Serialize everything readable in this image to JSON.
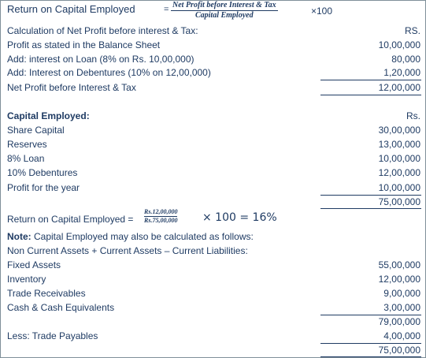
{
  "roce_label": "Return on Capital Employed",
  "roce_equals": "=",
  "roce_numerator": "Net Profit before Interest & Tax",
  "roce_denominator": "Capital Employed",
  "roce_times": "×100",
  "calc": {
    "heading": "Calculation of Net Profit before interest & Tax:",
    "currency": "RS.",
    "rows": [
      {
        "label": "Profit as stated in the Balance Sheet",
        "amount": "10,00,000"
      },
      {
        "label": "Add: interest on Loan (8% on Rs. 10,00,000)",
        "amount": "80,000"
      },
      {
        "label": "Add: Interest on Debentures (10% on 12,00,000)",
        "amount": "1,20,000"
      },
      {
        "label": "Net Profit before Interest & Tax",
        "amount": "12,00,000"
      }
    ]
  },
  "ce": {
    "heading": "Capital Employed:",
    "currency": "Rs.",
    "rows": [
      {
        "label": "Share Capital",
        "amount": "30,00,000"
      },
      {
        "label": "Reserves",
        "amount": "13,00,000"
      },
      {
        "label": "8% Loan",
        "amount": "10,00,000"
      },
      {
        "label": "10% Debentures",
        "amount": "12,00,000"
      },
      {
        "label": "Profit for the year",
        "amount": "10,00,000"
      }
    ],
    "total": "75,00,000"
  },
  "result": {
    "label": "Return on Capital Employed =",
    "numerator": "Rs.12,00,000",
    "denominator": "Rs.75,00,000",
    "tail": "× 100 = 16%"
  },
  "note": {
    "bold": "Note:",
    "text": " Capital Employed may also be calculated as follows:",
    "formula": "Non Current Assets + Current Assets – Current Liabilities:"
  },
  "alt": {
    "rows": [
      {
        "label": "Fixed Assets",
        "amount": "55,00,000"
      },
      {
        "label": "Inventory",
        "amount": "12,00,000"
      },
      {
        "label": "Trade Receivables",
        "amount": "9,00,000"
      },
      {
        "label": "Cash & Cash Equivalents",
        "amount": "3,00,000"
      }
    ],
    "subtotal": "79,00,000",
    "less_label": "Less: Trade Payables",
    "less_amount": "4,00,000",
    "total": "75,00,000"
  }
}
